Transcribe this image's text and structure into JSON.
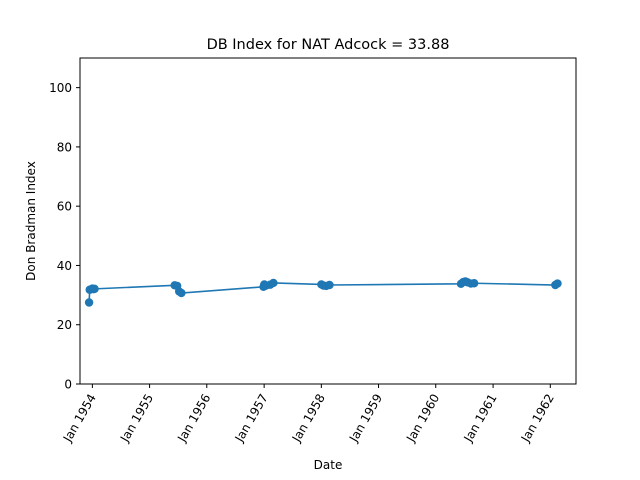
{
  "chart_data": {
    "type": "line",
    "title": "DB Index for NAT Adcock = 33.88",
    "xlabel": "Date",
    "ylabel": "Don Bradman Index",
    "ylim": [
      0,
      110
    ],
    "yticks": [
      0,
      20,
      40,
      60,
      80,
      100
    ],
    "xlim": [
      "1953-10-14",
      "1962-06-14"
    ],
    "xticks": [
      {
        "date": "1954-01-01",
        "label": "Jan 1954"
      },
      {
        "date": "1955-01-01",
        "label": "Jan 1955"
      },
      {
        "date": "1956-01-01",
        "label": "Jan 1956"
      },
      {
        "date": "1957-01-01",
        "label": "Jan 1957"
      },
      {
        "date": "1958-01-01",
        "label": "Jan 1958"
      },
      {
        "date": "1959-01-01",
        "label": "Jan 1959"
      },
      {
        "date": "1960-01-01",
        "label": "Jan 1960"
      },
      {
        "date": "1961-01-01",
        "label": "Jan 1961"
      },
      {
        "date": "1962-01-01",
        "label": "Jan 1962"
      }
    ],
    "grid": false,
    "color": "#1f77b4",
    "series": [
      {
        "points": [
          {
            "x": "1953-12-11",
            "y": 27.5
          },
          {
            "x": "1953-12-15",
            "y": 31.8
          },
          {
            "x": "1954-01-01",
            "y": 32.2
          },
          {
            "x": "1954-01-08",
            "y": 32.0
          },
          {
            "x": "1954-01-15",
            "y": 32.1
          },
          {
            "x": "1955-06-10",
            "y": 33.3
          },
          {
            "x": "1955-06-26",
            "y": 33.1
          },
          {
            "x": "1955-07-09",
            "y": 31.2
          },
          {
            "x": "1955-07-23",
            "y": 30.7
          },
          {
            "x": "1956-12-28",
            "y": 32.8
          },
          {
            "x": "1957-01-02",
            "y": 33.6
          },
          {
            "x": "1957-01-12",
            "y": 33.2
          },
          {
            "x": "1957-02-08",
            "y": 33.5
          },
          {
            "x": "1957-03-01",
            "y": 34.1
          },
          {
            "x": "1958-01-01",
            "y": 33.6
          },
          {
            "x": "1958-01-15",
            "y": 33.2
          },
          {
            "x": "1958-02-01",
            "y": 33.1
          },
          {
            "x": "1958-02-22",
            "y": 33.4
          },
          {
            "x": "1960-06-10",
            "y": 33.8
          },
          {
            "x": "1960-06-24",
            "y": 34.4
          },
          {
            "x": "1960-07-08",
            "y": 34.6
          },
          {
            "x": "1960-07-22",
            "y": 34.3
          },
          {
            "x": "1960-08-12",
            "y": 33.9
          },
          {
            "x": "1960-09-02",
            "y": 34.0
          },
          {
            "x": "1962-02-02",
            "y": 33.4
          },
          {
            "x": "1962-02-16",
            "y": 33.9
          }
        ]
      }
    ]
  }
}
